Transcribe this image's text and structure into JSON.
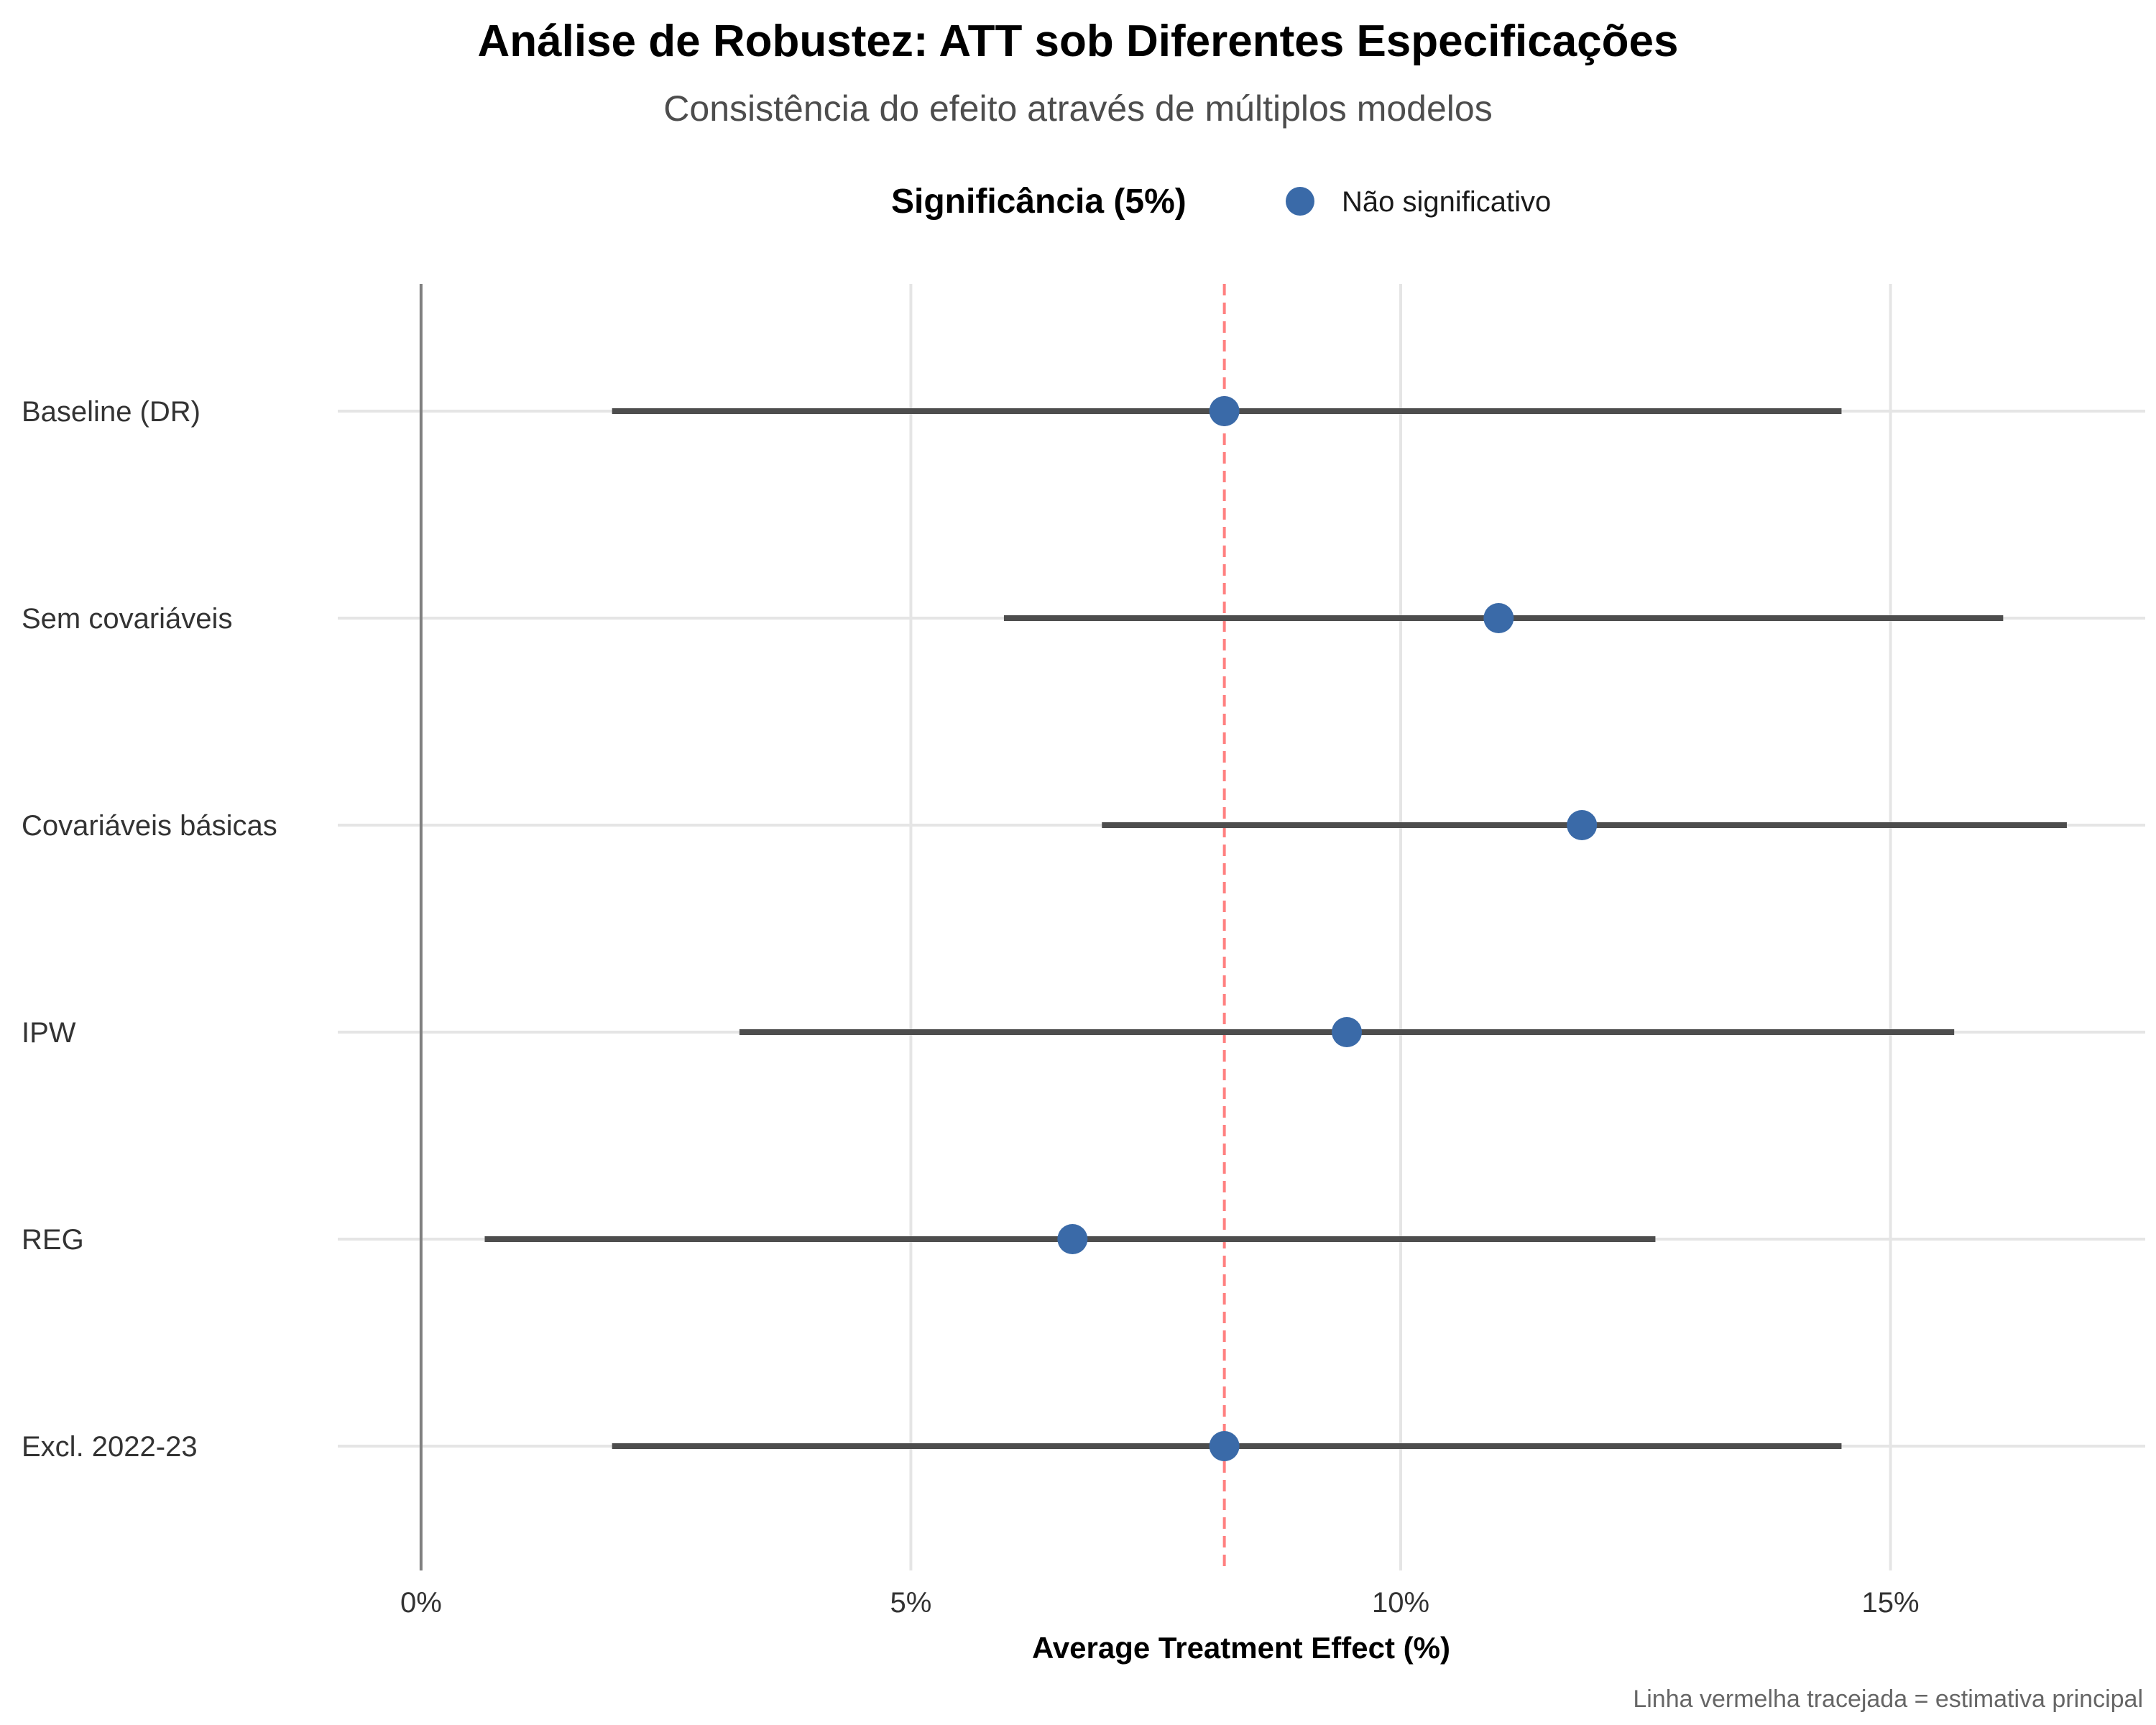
{
  "chart_data": {
    "type": "scatter",
    "title": "Análise de Robustez: ATT sob Diferentes Especificações",
    "subtitle": "Consistência do efeito através de múltiplos modelos",
    "xlabel": "Average Treatment Effect (%)",
    "ylabel": "",
    "caption": "Linha vermelha tracejada = estimativa principal",
    "legend": {
      "title": "Significância (5%)",
      "position": "top",
      "entries": [
        {
          "label": "Não significativo",
          "color": "#3a6aa8"
        }
      ]
    },
    "categories": [
      "Baseline (DR)",
      "Sem covariáveis",
      "Covariáveis básicas",
      "IPW",
      "REG",
      "Excl. 2022-23"
    ],
    "series": [
      {
        "name": "Não significativo",
        "estimate": [
          8.2,
          11.0,
          11.85,
          9.45,
          6.65,
          8.2
        ],
        "ci_low": [
          1.95,
          5.95,
          6.95,
          3.25,
          0.65,
          1.95
        ],
        "ci_high": [
          14.5,
          16.15,
          16.8,
          15.65,
          12.6,
          14.5
        ]
      }
    ],
    "reference_lines": [
      {
        "x": 0,
        "style": "solid",
        "color": "#808080"
      },
      {
        "x": 8.2,
        "style": "dashed",
        "color": "#ff8080"
      }
    ],
    "xlim": [
      -0.85,
      17.6
    ],
    "xticks": [
      0,
      5,
      10,
      15
    ],
    "xtick_labels": [
      "0%",
      "5%",
      "10%",
      "15%"
    ],
    "grid": true,
    "colors": {
      "point": "#3a6aa8",
      "interval": "#4d4d4d",
      "grid": "#e5e5e5"
    }
  }
}
